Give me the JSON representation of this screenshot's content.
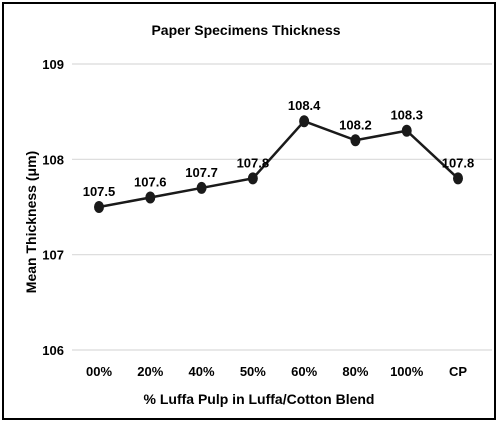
{
  "chart_data": {
    "type": "line",
    "title": "Paper Specimens Thickness",
    "xlabel": "% Luffa Pulp in Luffa/Cotton Blend",
    "ylabel": "Mean Thickness (μm)",
    "categories": [
      "00%",
      "20%",
      "40%",
      "50%",
      "60%",
      "80%",
      "100%",
      "CP"
    ],
    "series": [
      {
        "values": [
          107.5,
          107.6,
          107.7,
          107.8,
          108.4,
          108.2,
          108.3,
          107.8
        ]
      }
    ],
    "ylim": [
      106,
      109
    ],
    "yticks": [
      "106",
      "107",
      "108",
      "109"
    ],
    "grid": true,
    "line_color": "#1a1a1a",
    "grid_color": "#d9d9d9"
  }
}
